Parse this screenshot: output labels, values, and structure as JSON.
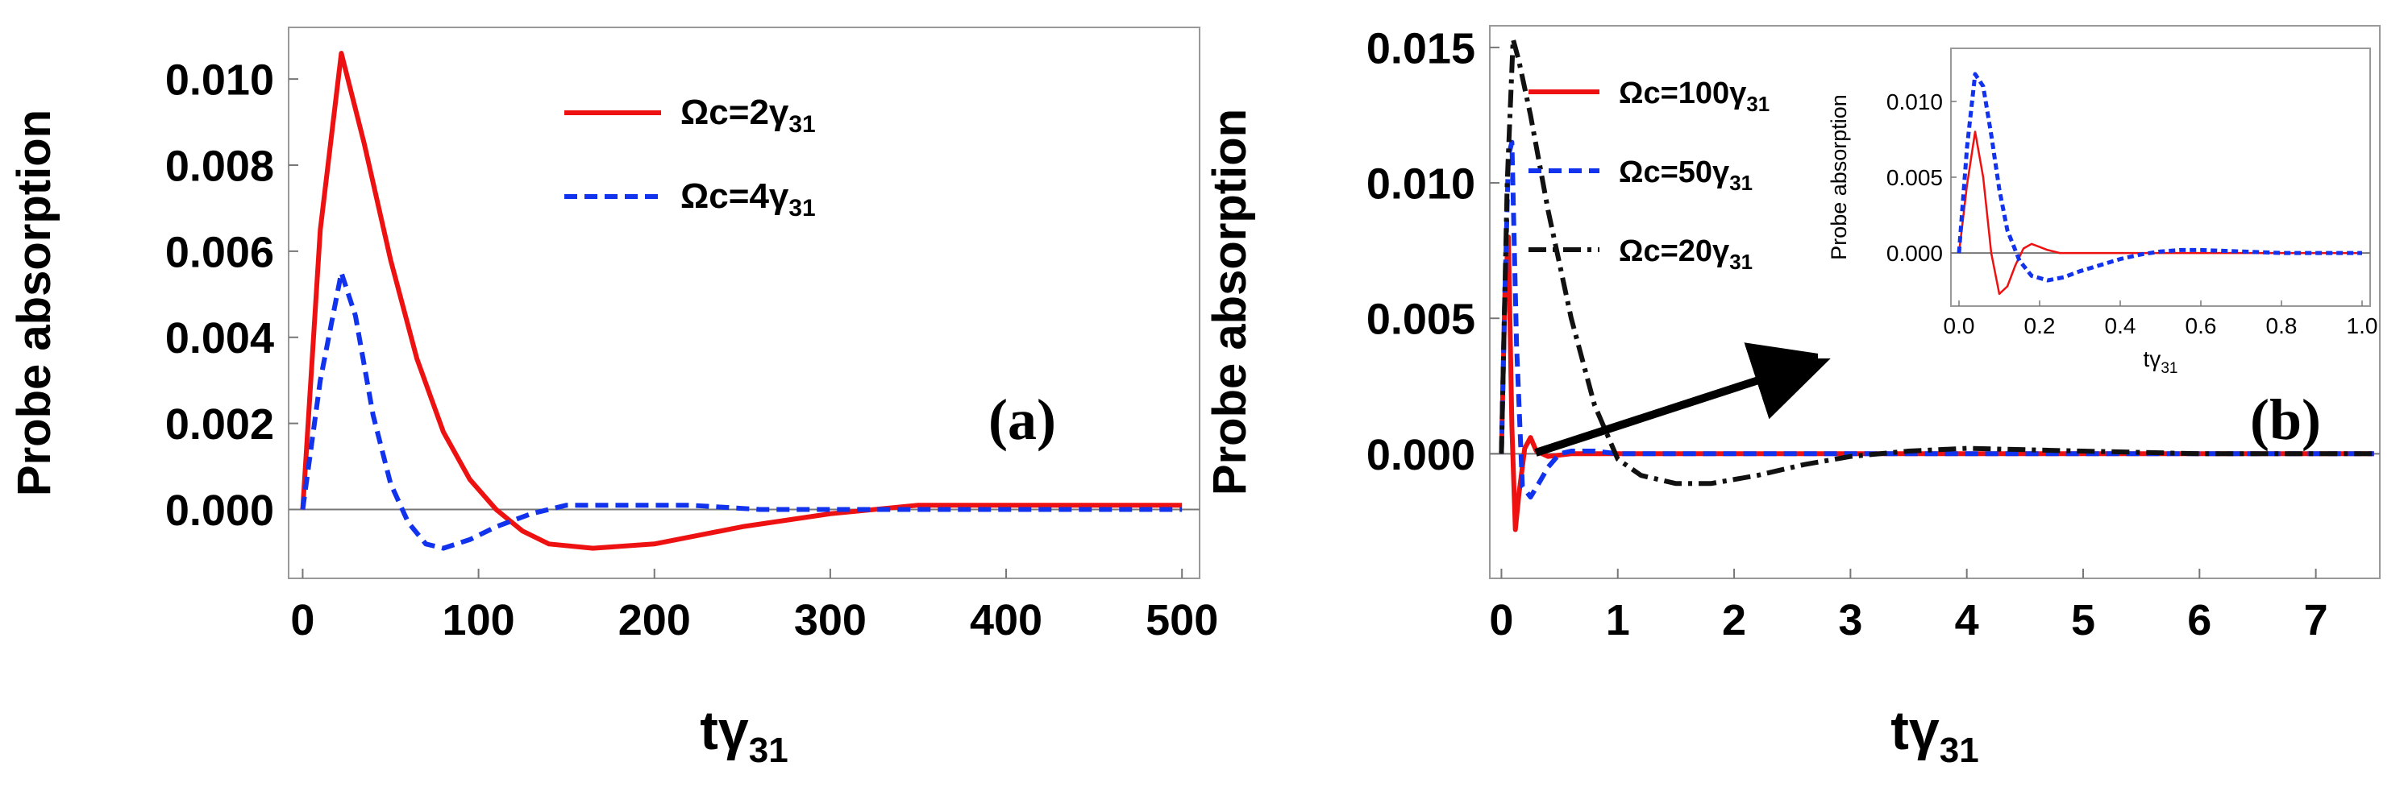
{
  "chart_data": [
    {
      "type": "line",
      "panel_label": "(a)",
      "ylabel": "Probe absorption",
      "xlabel": {
        "main": "tγ",
        "sub": "31"
      },
      "xlim": [
        -8,
        510
      ],
      "ylim": [
        -0.0016,
        0.0112
      ],
      "xticks": [
        0,
        100,
        200,
        300,
        400,
        500
      ],
      "xtick_labels": [
        "0",
        "100",
        "200",
        "300",
        "400",
        "500"
      ],
      "yticks": [
        0.0,
        0.002,
        0.004,
        0.006,
        0.008,
        0.01
      ],
      "ytick_labels": [
        "0.000",
        "0.002",
        "0.004",
        "0.006",
        "0.008",
        "0.010"
      ],
      "legend_position": "top-center",
      "series": [
        {
          "name": "Ωc=2γ",
          "name_main": "Ωc=2γ",
          "name_sub": "31",
          "color": "#ee1111",
          "dash": "solid",
          "x": [
            0,
            10,
            22,
            35,
            50,
            65,
            80,
            95,
            110,
            125,
            140,
            165,
            200,
            250,
            300,
            350,
            400,
            450,
            500
          ],
          "y": [
            0.0,
            0.0065,
            0.0106,
            0.0085,
            0.0058,
            0.0035,
            0.0018,
            0.0007,
            0.0,
            -0.0005,
            -0.0008,
            -0.0009,
            -0.0008,
            -0.0004,
            -0.0001,
            0.0001,
            0.0001,
            0.0001,
            0.0001
          ]
        },
        {
          "name": "Ωc=4γ",
          "name_main": "Ωc=4γ",
          "name_sub": "31",
          "color": "#1133ee",
          "dash": "dashed",
          "x": [
            0,
            10,
            22,
            30,
            40,
            50,
            60,
            70,
            80,
            95,
            110,
            130,
            150,
            180,
            220,
            260,
            300,
            350,
            400,
            450,
            500
          ],
          "y": [
            0.0,
            0.003,
            0.0055,
            0.0045,
            0.0022,
            0.0006,
            -0.0003,
            -0.0008,
            -0.0009,
            -0.0007,
            -0.0004,
            -0.0001,
            0.0001,
            0.0001,
            0.0001,
            0.0,
            0.0,
            0.0,
            0.0,
            0.0,
            0.0
          ]
        }
      ]
    },
    {
      "type": "line",
      "panel_label": "(b)",
      "ylabel": "Probe absorption",
      "xlabel": {
        "main": "tγ",
        "sub": "31"
      },
      "xlim": [
        -0.1,
        7.55
      ],
      "ylim": [
        -0.0046,
        0.0158
      ],
      "xticks": [
        0,
        1,
        2,
        3,
        4,
        5,
        6,
        7
      ],
      "xtick_labels": [
        "0",
        "1",
        "2",
        "3",
        "4",
        "5",
        "6",
        "7"
      ],
      "yticks": [
        0.0,
        0.005,
        0.01,
        0.015
      ],
      "ytick_labels": [
        "0.000",
        "0.005",
        "0.010",
        "0.015"
      ],
      "legend_position": "top-left",
      "series": [
        {
          "name": "Ωc=100γ",
          "name_main": "Ωc=100γ",
          "name_sub": "31",
          "color": "#ee1111",
          "dash": "solid",
          "x": [
            0,
            0.03,
            0.06,
            0.09,
            0.12,
            0.15,
            0.2,
            0.25,
            0.3,
            0.4,
            0.6,
            1,
            2,
            3,
            4,
            5,
            6,
            7,
            7.5
          ],
          "y": [
            0.0,
            0.006,
            0.008,
            0.001,
            -0.0028,
            -0.0015,
            0.0002,
            0.0006,
            0.0001,
            -0.0001,
            0.0,
            0.0,
            0.0,
            0.0,
            0.0,
            0.0,
            0.0,
            0.0,
            0.0
          ]
        },
        {
          "name": "Ωc=50γ",
          "name_main": "Ωc=50γ",
          "name_sub": "31",
          "color": "#1133ee",
          "dash": "dashed",
          "x": [
            0,
            0.03,
            0.06,
            0.09,
            0.13,
            0.18,
            0.25,
            0.32,
            0.4,
            0.5,
            0.6,
            0.8,
            1,
            2,
            3,
            4,
            5,
            6,
            7,
            7.5
          ],
          "y": [
            0.0,
            0.006,
            0.011,
            0.0115,
            0.004,
            -0.0012,
            -0.0016,
            -0.0011,
            -0.0005,
            0.0,
            0.0001,
            0.0001,
            0.0,
            0.0,
            0.0,
            0.0,
            0.0,
            0.0,
            0.0,
            0.0
          ]
        },
        {
          "name": "Ωc=20γ",
          "name_main": "Ωc=20γ",
          "name_sub": "31",
          "color": "#111111",
          "dash": "dashdot",
          "x": [
            0,
            0.05,
            0.1,
            0.15,
            0.25,
            0.4,
            0.6,
            0.8,
            1.0,
            1.2,
            1.5,
            1.8,
            2.2,
            2.6,
            3.0,
            3.5,
            4.0,
            5.0,
            6.0,
            7.0,
            7.5
          ],
          "y": [
            0.0,
            0.01,
            0.0153,
            0.0145,
            0.0125,
            0.009,
            0.005,
            0.0018,
            -0.0002,
            -0.0008,
            -0.0011,
            -0.0011,
            -0.0008,
            -0.0004,
            -0.0001,
            0.0001,
            0.0002,
            0.0001,
            0.0,
            0.0,
            0.0
          ]
        }
      ],
      "annotation": "arrow pointing to inset",
      "inset": {
        "type": "line",
        "ylabel": "Probe absorption",
        "xlabel": {
          "main": "tγ",
          "sub": "31"
        },
        "xlim": [
          -0.02,
          1.02
        ],
        "ylim": [
          -0.0035,
          0.0135
        ],
        "xticks": [
          0.0,
          0.2,
          0.4,
          0.6,
          0.8,
          1.0
        ],
        "xtick_labels": [
          "0.0",
          "0.2",
          "0.4",
          "0.6",
          "0.8",
          "1.0"
        ],
        "yticks": [
          0.0,
          0.005,
          0.01
        ],
        "ytick_labels": [
          "0.000",
          "0.005",
          "0.010"
        ],
        "series": [
          {
            "name": "Ωc=100γ31",
            "color": "#ee1111",
            "dash": "solid",
            "x": [
              0,
              0.02,
              0.04,
              0.06,
              0.08,
              0.1,
              0.12,
              0.14,
              0.16,
              0.18,
              0.2,
              0.22,
              0.25,
              0.3,
              0.4,
              0.6,
              1.0
            ],
            "y": [
              0.0,
              0.0045,
              0.008,
              0.005,
              0.0,
              -0.0027,
              -0.0022,
              -0.0008,
              0.0003,
              0.0006,
              0.0004,
              0.0002,
              0.0,
              0.0,
              0.0,
              0.0,
              0.0
            ]
          },
          {
            "name": "Ωc=50γ31",
            "color": "#1133ee",
            "dash": "dashed",
            "x": [
              0,
              0.02,
              0.04,
              0.06,
              0.08,
              0.1,
              0.12,
              0.15,
              0.18,
              0.22,
              0.26,
              0.3,
              0.35,
              0.4,
              0.45,
              0.5,
              0.55,
              0.6,
              0.7,
              0.8,
              0.9,
              1.0
            ],
            "y": [
              0.0,
              0.007,
              0.0118,
              0.011,
              0.0078,
              0.0042,
              0.0015,
              -0.0005,
              -0.0015,
              -0.0018,
              -0.0016,
              -0.0012,
              -0.0008,
              -0.0004,
              -0.0001,
              0.0001,
              0.0002,
              0.0002,
              0.0001,
              0.0,
              0.0,
              0.0
            ]
          }
        ]
      }
    }
  ]
}
